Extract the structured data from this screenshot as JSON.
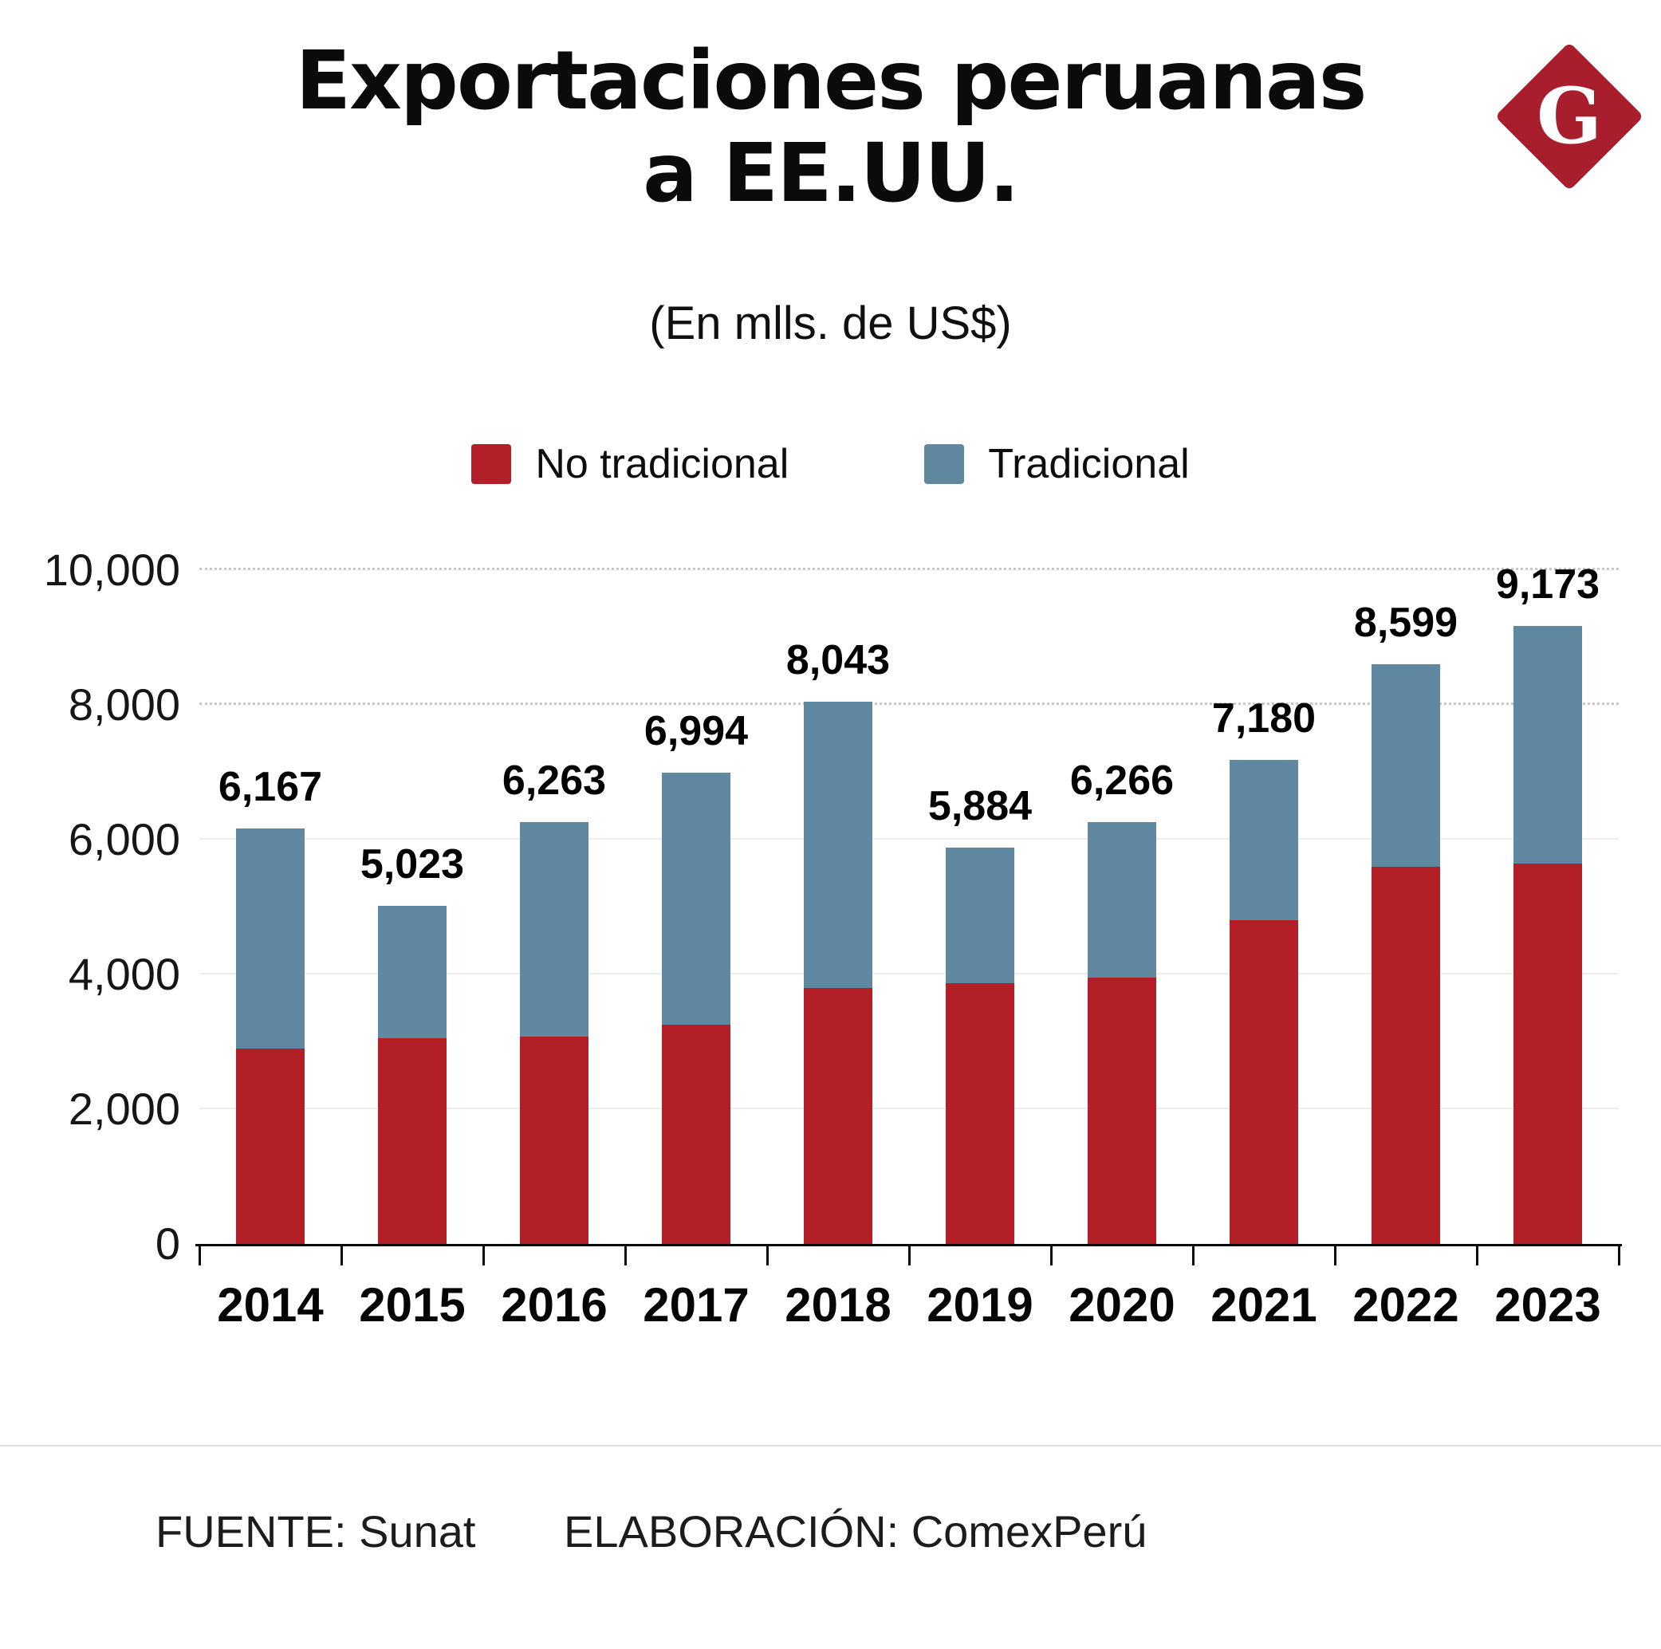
{
  "logo": {
    "letter": "G",
    "color": "#a81e2d"
  },
  "header": {
    "title_line1": "Exportaciones peruanas",
    "title_line2": "a EE.UU.",
    "subtitle": "(En mlls. de US$)"
  },
  "chart_data": {
    "type": "bar",
    "stacked": true,
    "title": "Exportaciones peruanas a EE.UU.",
    "subtitle": "(En mlls. de US$)",
    "categories": [
      "2014",
      "2015",
      "2016",
      "2017",
      "2018",
      "2019",
      "2020",
      "2021",
      "2022",
      "2023"
    ],
    "series": [
      {
        "name": "No tradicional",
        "color": "#b21f26",
        "values": [
          2900,
          3050,
          3080,
          3250,
          3800,
          3870,
          3950,
          4800,
          5600,
          5650
        ]
      },
      {
        "name": "Tradicional",
        "color": "#6089a1",
        "values": [
          3267,
          1973,
          3183,
          3744,
          4243,
          2014,
          2316,
          2380,
          2999,
          3523
        ]
      }
    ],
    "totals": [
      6167,
      5023,
      6263,
      6994,
      8043,
      5884,
      6266,
      7180,
      8599,
      9173
    ],
    "total_labels": [
      "6,167",
      "5,023",
      "6,263",
      "6,994",
      "8,043",
      "5,884",
      "6,266",
      "7,180",
      "8,599",
      "9,173"
    ],
    "y_ticks": [
      {
        "value": 0,
        "label": "0"
      },
      {
        "value": 2000,
        "label": "2,000"
      },
      {
        "value": 4000,
        "label": "4,000"
      },
      {
        "value": 6000,
        "label": "6,000"
      },
      {
        "value": 8000,
        "label": "8,000"
      },
      {
        "value": 10000,
        "label": "10,000"
      }
    ],
    "ylim": [
      0,
      10000
    ],
    "grid": true,
    "legend_position": "top"
  },
  "footer": {
    "source": "FUENTE: Sunat",
    "elaboration": "ELABORACIÓN: ComexPerú"
  }
}
